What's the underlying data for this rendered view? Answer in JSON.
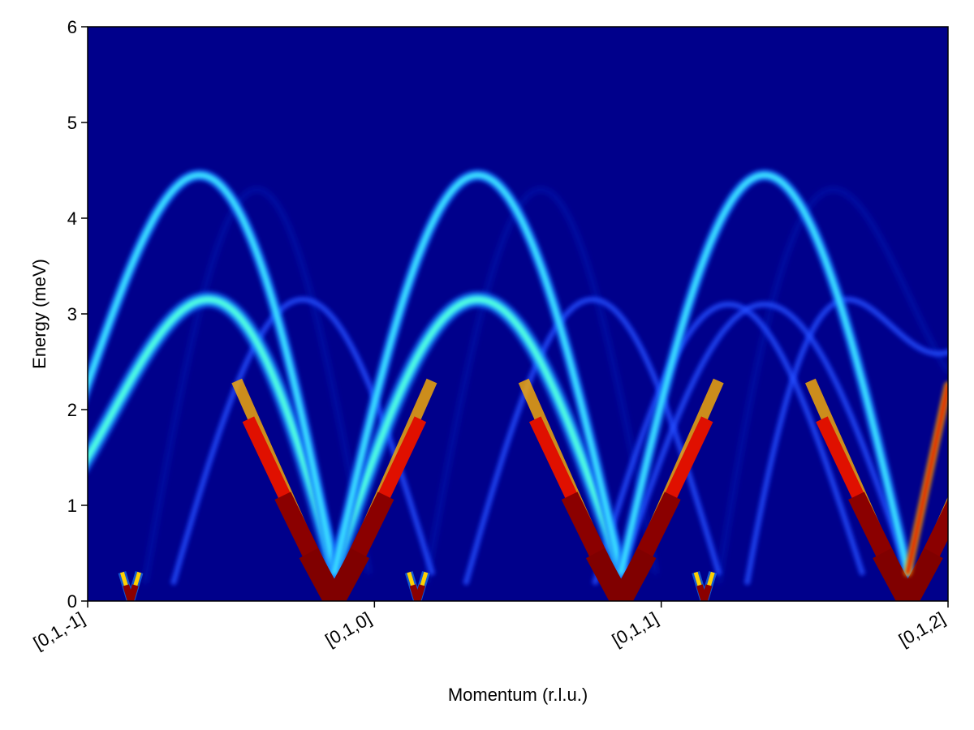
{
  "chart_data": {
    "type": "heatmap",
    "title": "",
    "xlabel": "Momentum (r.l.u.)",
    "ylabel": "Energy (meV)",
    "xlim": [
      0,
      3
    ],
    "ylim": [
      0,
      6
    ],
    "x_ticks": [
      {
        "value": 0,
        "label": "[0,1,-1]"
      },
      {
        "value": 1,
        "label": "[0,1,0]"
      },
      {
        "value": 2,
        "label": "[0,1,1]"
      },
      {
        "value": 3,
        "label": "[0,1,2]"
      }
    ],
    "y_ticks": [
      0,
      1,
      2,
      3,
      4,
      5,
      6
    ],
    "colormap": "jet",
    "colors": {
      "background": "#00008b",
      "intensity_max": "#800000"
    },
    "branches": [
      {
        "branch": "lower",
        "intensity": "strong",
        "points": [
          [
            0.0,
            1.55
          ],
          [
            0.15,
            0.2
          ],
          [
            0.86,
            0.3
          ],
          [
            1.15,
            0.2
          ],
          [
            1.86,
            0.3
          ],
          [
            2.15,
            0.2
          ],
          [
            2.86,
            0.3
          ]
        ]
      },
      {
        "branch": "upper",
        "intensity": "strong",
        "peaks": [
          [
            0.37,
            4.45
          ],
          [
            1.36,
            4.45
          ],
          [
            2.36,
            4.45
          ]
        ]
      },
      {
        "branch": "middle",
        "intensity": "strong",
        "peaks": [
          [
            0.38,
            3.15
          ],
          [
            1.37,
            3.15
          ]
        ]
      },
      {
        "branch": "middle",
        "intensity": "weak",
        "peaks": [
          [
            0.75,
            3.15
          ],
          [
            1.76,
            3.15
          ],
          [
            2.38,
            3.1
          ],
          [
            2.85,
            3.15
          ]
        ]
      },
      {
        "branch": "upper",
        "intensity": "weak",
        "peaks": [
          [
            0.58,
            4.35
          ],
          [
            1.57,
            4.35
          ],
          [
            2.58,
            4.35
          ]
        ]
      }
    ]
  }
}
